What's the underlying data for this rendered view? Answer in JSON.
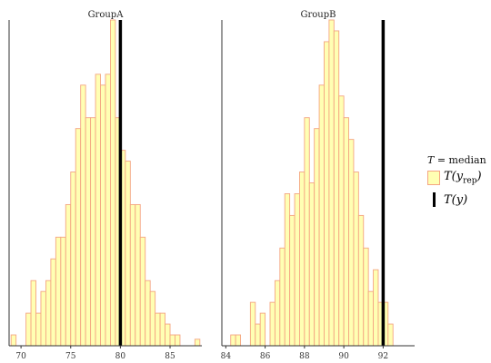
{
  "chart_data": [
    {
      "type": "bar",
      "panel": "GroupA",
      "title": "GroupA",
      "xlim": [
        68.8,
        88.2
      ],
      "ylim": [
        0,
        30
      ],
      "xticks": [
        70,
        75,
        80,
        85
      ],
      "bin_width": 0.5,
      "bin_start": 69.0,
      "counts": [
        1,
        0,
        0,
        3,
        6,
        3,
        5,
        6,
        8,
        10,
        10,
        13,
        16,
        20,
        24,
        21,
        21,
        25,
        24,
        25,
        30,
        21,
        18,
        17,
        13,
        13,
        10,
        6,
        5,
        3,
        3,
        2,
        1,
        1,
        0,
        0,
        0,
        0.6
      ],
      "observed_T": 80.0
    },
    {
      "type": "bar",
      "panel": "GroupB",
      "title": "GroupB",
      "xlim": [
        83.8,
        93.6
      ],
      "ylim": [
        0,
        30
      ],
      "xticks": [
        84,
        86,
        88,
        90,
        92
      ],
      "bin_width": 0.25,
      "bin_start": 84.25,
      "counts": [
        1,
        1,
        0,
        0,
        4,
        2,
        3,
        0,
        4,
        6,
        9,
        14,
        12,
        14,
        16,
        21,
        15,
        20,
        24,
        28,
        30,
        29,
        23,
        21,
        19,
        16,
        12,
        9,
        5,
        7,
        4,
        4,
        2
      ],
      "observed_T": 92.0
    }
  ],
  "colors": {
    "fill": "#ffffb3",
    "stroke": "#f4a582",
    "observed": "#000000",
    "axis": "#333333"
  },
  "legend": {
    "title_T": "T",
    "title_rest": " = median",
    "rep_label_T": "T(y",
    "rep_label_sub": "rep",
    "rep_label_close": ")",
    "obs_label": "T(y)"
  }
}
